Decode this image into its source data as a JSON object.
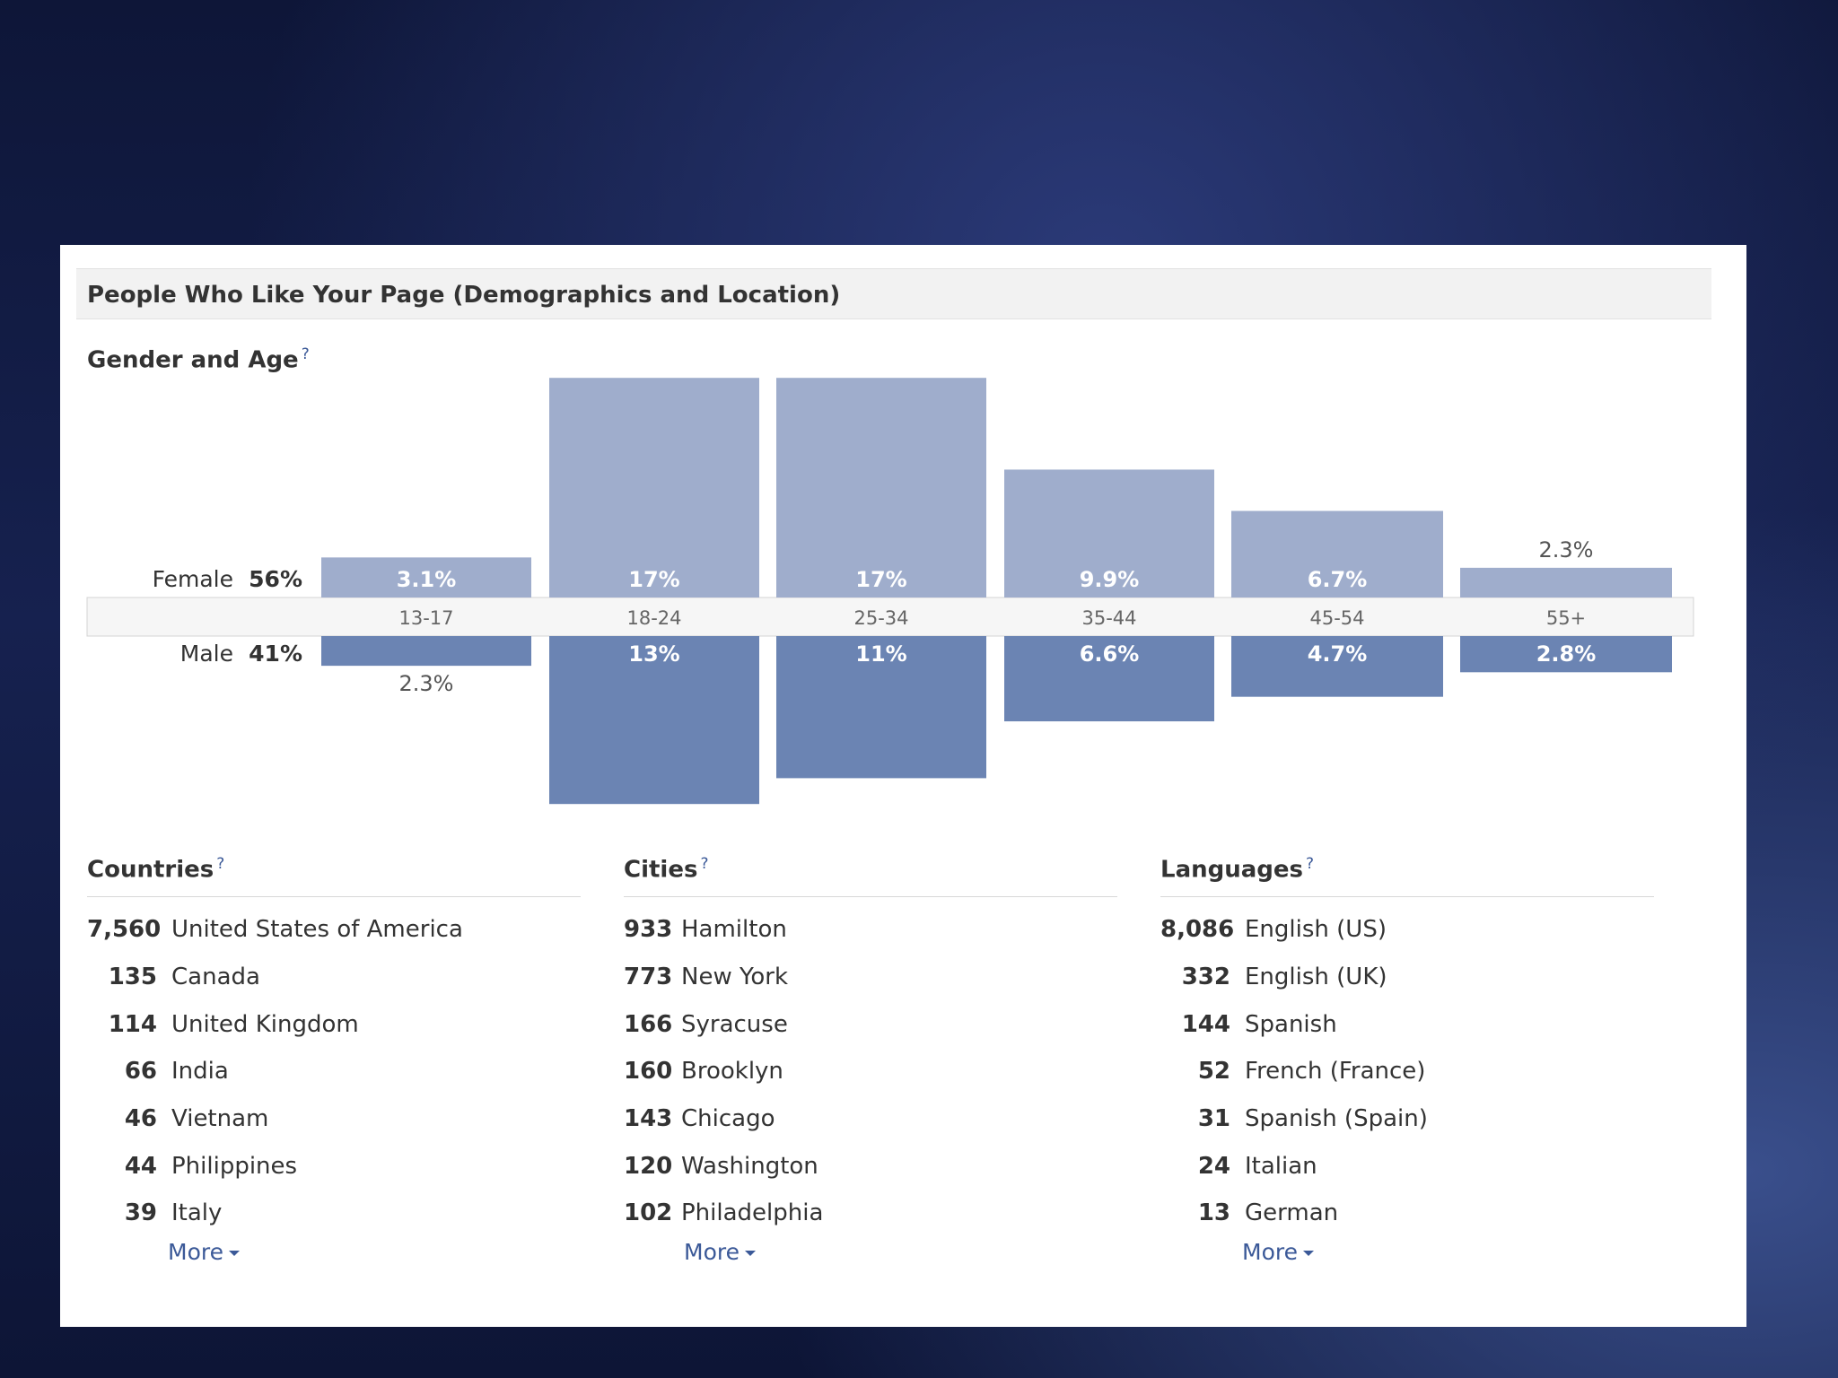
{
  "panel": {
    "title": "People Who Like Your Page (Demographics and Location)"
  },
  "gender_age": {
    "title": "Gender and Age",
    "help_icon": "?",
    "female_label": "Female",
    "female_pct": "56%",
    "male_label": "Male",
    "male_pct": "41%"
  },
  "chart_data": {
    "type": "bar",
    "categories": [
      "13-17",
      "18-24",
      "25-34",
      "35-44",
      "45-54",
      "55+"
    ],
    "series": [
      {
        "name": "Female",
        "values": [
          3.1,
          17,
          17,
          9.9,
          6.7,
          2.3
        ],
        "labels": [
          "3.1%",
          "17%",
          "17%",
          "9.9%",
          "6.7%",
          "2.3%"
        ],
        "color": "#9fadcc"
      },
      {
        "name": "Male",
        "values": [
          2.3,
          13,
          11,
          6.6,
          4.7,
          2.8
        ],
        "labels": [
          "2.3%",
          "13%",
          "11%",
          "6.6%",
          "4.7%",
          "2.8%"
        ],
        "color": "#6b84b3"
      }
    ],
    "title": "Gender and Age",
    "xlabel": "",
    "ylabel": ""
  },
  "countries": {
    "title": "Countries",
    "help_icon": "?",
    "items": [
      {
        "count": "7,560",
        "name": "United States of America"
      },
      {
        "count": "135",
        "name": "Canada"
      },
      {
        "count": "114",
        "name": "United Kingdom"
      },
      {
        "count": "66",
        "name": "India"
      },
      {
        "count": "46",
        "name": "Vietnam"
      },
      {
        "count": "44",
        "name": "Philippines"
      },
      {
        "count": "39",
        "name": "Italy"
      }
    ],
    "more": "More"
  },
  "cities": {
    "title": "Cities",
    "help_icon": "?",
    "items": [
      {
        "count": "933",
        "name": "Hamilton"
      },
      {
        "count": "773",
        "name": "New York"
      },
      {
        "count": "166",
        "name": "Syracuse"
      },
      {
        "count": "160",
        "name": "Brooklyn"
      },
      {
        "count": "143",
        "name": "Chicago"
      },
      {
        "count": "120",
        "name": "Washington"
      },
      {
        "count": "102",
        "name": "Philadelphia"
      }
    ],
    "more": "More"
  },
  "languages": {
    "title": "Languages",
    "help_icon": "?",
    "items": [
      {
        "count": "8,086",
        "name": "English (US)"
      },
      {
        "count": "332",
        "name": "English (UK)"
      },
      {
        "count": "144",
        "name": "Spanish"
      },
      {
        "count": "52",
        "name": "French (France)"
      },
      {
        "count": "31",
        "name": "Spanish (Spain)"
      },
      {
        "count": "24",
        "name": "Italian"
      },
      {
        "count": "13",
        "name": "German"
      }
    ],
    "more": "More"
  }
}
